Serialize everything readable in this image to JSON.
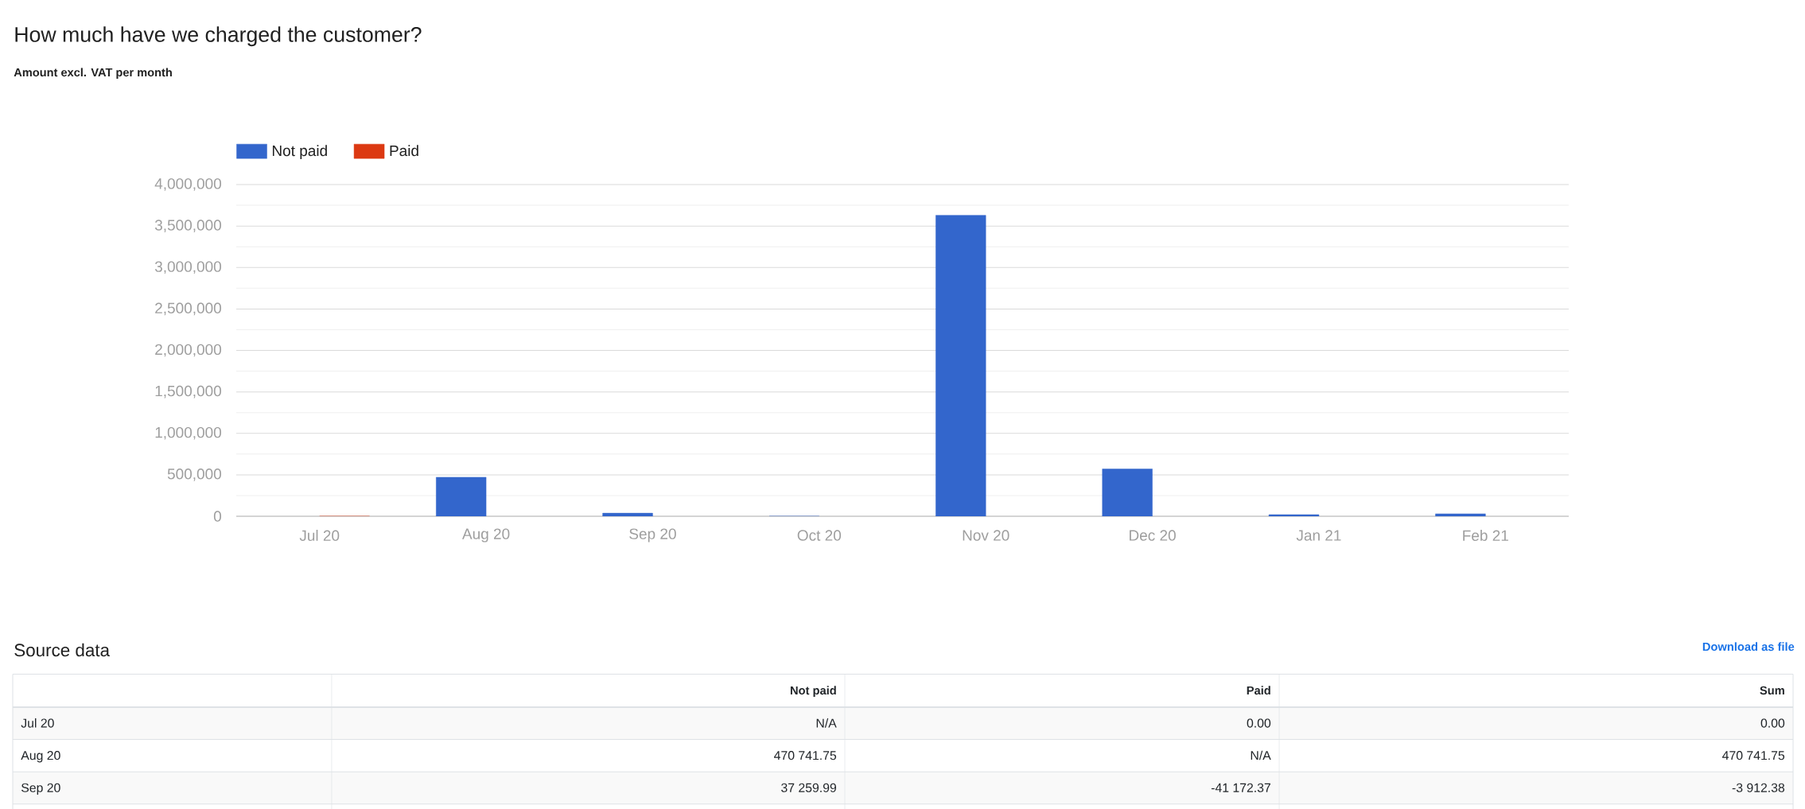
{
  "chart_data": {
    "type": "bar",
    "title": "How much have we charged the customer?",
    "subtitle": "Amount excl. VAT per month",
    "categories": [
      "Jul 20",
      "Aug 20",
      "Sep 20",
      "Oct 20",
      "Nov 20",
      "Dec 20",
      "Jan 21",
      "Feb 21"
    ],
    "series": [
      {
        "name": "Not paid",
        "color": "#3366cc",
        "values": [
          null,
          470741.75,
          37259.99,
          0,
          3630000,
          570000,
          20000,
          30000
        ]
      },
      {
        "name": "Paid",
        "color": "#dc3912",
        "values": [
          0,
          null,
          null,
          null,
          null,
          null,
          null,
          null
        ]
      }
    ],
    "ylim": [
      0,
      4000000
    ],
    "yticks": [
      0,
      {
        "value": 500000,
        "label": "500,000"
      },
      {
        "value": 1000000,
        "label": "1,000,000"
      },
      {
        "value": 1500000,
        "label": "1,500,000"
      },
      {
        "value": 2000000,
        "label": "2,000,000"
      },
      {
        "value": 2500000,
        "label": "2,500,000"
      },
      {
        "value": 3000000,
        "label": "3,000,000"
      },
      {
        "value": 3500000,
        "label": "3,500,000"
      },
      {
        "value": 4000000,
        "label": "4,000,000"
      }
    ],
    "grid": "y",
    "legend": "top left",
    "annotations": [
      "Source data",
      "Download as file",
      "Sum",
      "N/A",
      "0.00",
      "0.00",
      "470 741.75",
      "N/A",
      "470 741.75",
      "37 259.99",
      "-41 172.37",
      "-3 912.38"
    ]
  }
}
